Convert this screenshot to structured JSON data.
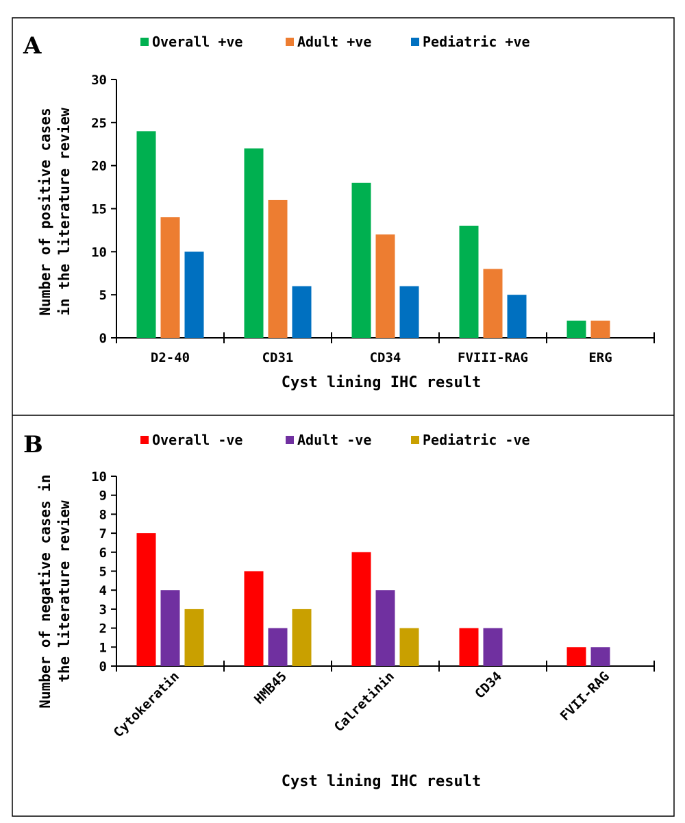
{
  "chart_data": [
    {
      "panel": "A",
      "type": "bar",
      "categories": [
        "D2-40",
        "CD31",
        "CD34",
        "FVIII-RAG",
        "ERG"
      ],
      "series": [
        {
          "name": "Overall +ve",
          "color": "#00B050",
          "values": [
            24,
            22,
            18,
            13,
            2
          ]
        },
        {
          "name": "Adult +ve",
          "color": "#ED7D31",
          "values": [
            14,
            16,
            12,
            8,
            2
          ]
        },
        {
          "name": "Pediatric +ve",
          "color": "#0070C0",
          "values": [
            10,
            6,
            6,
            5,
            null
          ]
        }
      ],
      "ylim": [
        0,
        30
      ],
      "yticks": [
        0,
        5,
        10,
        15,
        20,
        25,
        30
      ],
      "xlabel": "Cyst lining IHC result",
      "ylabel": [
        "Number of positive  cases",
        "in the literature review"
      ],
      "legend_position": "top",
      "grid": false,
      "rotated_categories": false
    },
    {
      "panel": "B",
      "type": "bar",
      "categories": [
        "Cytokeratin",
        "HMB45",
        "Calretinin",
        "CD34",
        "FVII-RAG"
      ],
      "series": [
        {
          "name": "Overall -ve",
          "color": "#FF0000",
          "values": [
            7,
            5,
            6,
            2,
            1
          ]
        },
        {
          "name": "Adult -ve",
          "color": "#7030A0",
          "values": [
            4,
            2,
            4,
            2,
            1
          ]
        },
        {
          "name": "Pediatric -ve",
          "color": "#C9A000",
          "values": [
            3,
            3,
            2,
            null,
            null
          ]
        }
      ],
      "ylim": [
        0,
        10
      ],
      "yticks": [
        0,
        1,
        2,
        3,
        4,
        5,
        6,
        7,
        8,
        9,
        10
      ],
      "xlabel": "Cyst lining IHC result",
      "ylabel": [
        "Number of negative cases in",
        "the literature review"
      ],
      "legend_position": "top",
      "grid": false,
      "rotated_categories": true
    }
  ]
}
